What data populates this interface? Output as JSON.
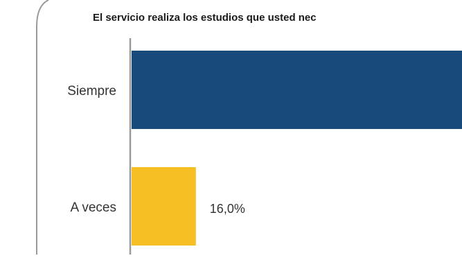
{
  "chart_data": {
    "type": "bar",
    "orientation": "horizontal",
    "title": "El servicio realiza los estudios que usted nec",
    "categories": [
      "Siempre",
      "A veces"
    ],
    "values": [
      null,
      16.0
    ],
    "data_labels": [
      "",
      "16,0%"
    ],
    "colors": [
      "#184a7c",
      "#f6c024"
    ],
    "xlabel": "",
    "ylabel": "",
    "grid": false,
    "legend": "none"
  }
}
